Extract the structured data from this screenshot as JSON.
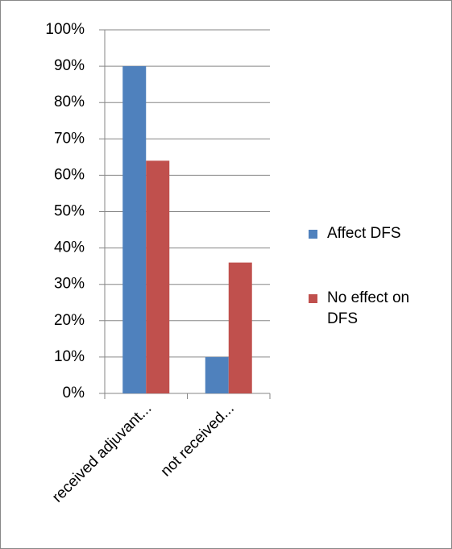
{
  "chart_data": {
    "type": "bar",
    "categories": [
      "received adjuvant...",
      "not received..."
    ],
    "series": [
      {
        "name": "Affect DFS",
        "color": "#4f81bd",
        "values": [
          90,
          10
        ]
      },
      {
        "name": "No effect on DFS",
        "color": "#c0504d",
        "values": [
          64,
          36
        ]
      }
    ],
    "ylim": [
      0,
      100
    ],
    "yticks": [
      {
        "value": 0,
        "label": "0%"
      },
      {
        "value": 10,
        "label": "10%"
      },
      {
        "value": 20,
        "label": "20%"
      },
      {
        "value": 30,
        "label": "30%"
      },
      {
        "value": 40,
        "label": "40%"
      },
      {
        "value": 50,
        "label": "50%"
      },
      {
        "value": 60,
        "label": "60%"
      },
      {
        "value": 70,
        "label": "70%"
      },
      {
        "value": 80,
        "label": "80%"
      },
      {
        "value": 90,
        "label": "90%"
      },
      {
        "value": 100,
        "label": "100%"
      }
    ],
    "grid": true,
    "legend": "right"
  }
}
